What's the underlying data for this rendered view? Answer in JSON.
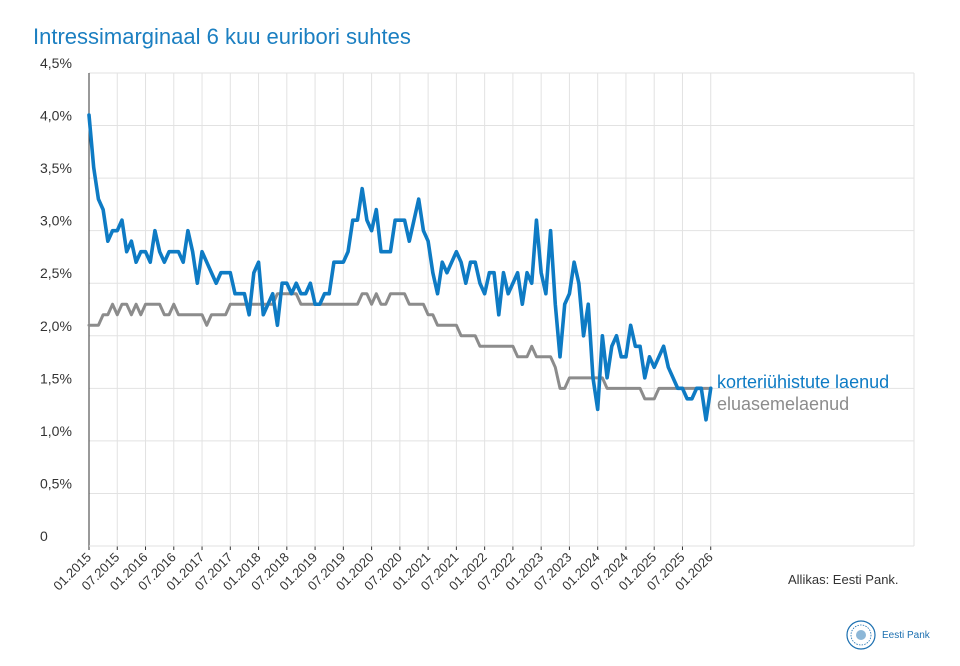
{
  "title": "Intressimarginaal 6 kuu euribori suhtes",
  "source": "Allikas: Eesti Pank.",
  "logo": {
    "name": "Eesti Pank"
  },
  "colors": {
    "series1": "#0e7bc4",
    "series2": "#8c8c8c",
    "title": "#1b7fc1",
    "grid": "#e2e2e2",
    "axis": "#333333"
  },
  "chart_data": {
    "type": "line",
    "title": "Intressimarginaal 6 kuu euribori suhtes",
    "xlabel": "",
    "ylabel": "",
    "ylim": [
      0,
      4.5
    ],
    "yticks": [
      0,
      0.5,
      1.0,
      1.5,
      2.0,
      2.5,
      3.0,
      3.5,
      4.0,
      4.5
    ],
    "ytick_labels": [
      "0",
      "0,5%",
      "1,0%",
      "1,5%",
      "2,0%",
      "2,5%",
      "3,0%",
      "3,5%",
      "4,0%",
      "4,5%"
    ],
    "x_start": "01.2015",
    "x_end": "01.2026",
    "xtick_labels": [
      "01.2015",
      "07.2015",
      "01.2016",
      "07.2016",
      "01.2017",
      "07.2017",
      "01.2018",
      "07.2018",
      "01.2019",
      "07.2019",
      "01.2020",
      "07.2020",
      "01.2021",
      "07.2021",
      "01.2022",
      "07.2022",
      "01.2023",
      "07.2023",
      "01.2024",
      "07.2024",
      "01.2025",
      "07.2025",
      "01.2026"
    ],
    "series": [
      {
        "name": "korteriühistute laenud",
        "values": [
          4.1,
          3.6,
          3.3,
          3.2,
          2.9,
          3.0,
          3.0,
          3.1,
          2.8,
          2.9,
          2.7,
          2.8,
          2.8,
          2.7,
          3.0,
          2.8,
          2.7,
          2.8,
          2.8,
          2.8,
          2.7,
          3.0,
          2.8,
          2.5,
          2.8,
          2.7,
          2.6,
          2.5,
          2.6,
          2.6,
          2.6,
          2.4,
          2.4,
          2.4,
          2.2,
          2.6,
          2.7,
          2.2,
          2.3,
          2.4,
          2.1,
          2.5,
          2.5,
          2.4,
          2.5,
          2.4,
          2.4,
          2.5,
          2.3,
          2.3,
          2.4,
          2.4,
          2.7,
          2.7,
          2.7,
          2.8,
          3.1,
          3.1,
          3.4,
          3.1,
          3.0,
          3.2,
          2.8,
          2.8,
          2.8,
          3.1,
          3.1,
          3.1,
          2.9,
          3.1,
          3.3,
          3.0,
          2.9,
          2.6,
          2.4,
          2.7,
          2.6,
          2.7,
          2.8,
          2.7,
          2.5,
          2.7,
          2.7,
          2.5,
          2.4,
          2.6,
          2.6,
          2.2,
          2.6,
          2.4,
          2.5,
          2.6,
          2.3,
          2.6,
          2.5,
          3.1,
          2.6,
          2.4,
          3.0,
          2.3,
          1.8,
          2.3,
          2.4,
          2.7,
          2.5,
          2.0,
          2.3,
          1.6,
          1.3,
          2.0,
          1.6,
          1.9,
          2.0,
          1.8,
          1.8,
          2.1,
          1.9,
          1.9,
          1.6,
          1.8,
          1.7,
          1.8,
          1.9,
          1.7,
          1.6,
          1.5,
          1.5,
          1.4,
          1.4,
          1.5,
          1.5,
          1.2,
          1.5
        ]
      },
      {
        "name": "eluasemelaenud",
        "values": [
          2.1,
          2.1,
          2.1,
          2.2,
          2.2,
          2.3,
          2.2,
          2.3,
          2.3,
          2.2,
          2.3,
          2.2,
          2.3,
          2.3,
          2.3,
          2.3,
          2.2,
          2.2,
          2.3,
          2.2,
          2.2,
          2.2,
          2.2,
          2.2,
          2.2,
          2.1,
          2.2,
          2.2,
          2.2,
          2.2,
          2.3,
          2.3,
          2.3,
          2.3,
          2.3,
          2.3,
          2.3,
          2.3,
          2.3,
          2.3,
          2.4,
          2.4,
          2.4,
          2.4,
          2.4,
          2.3,
          2.3,
          2.3,
          2.3,
          2.3,
          2.3,
          2.3,
          2.3,
          2.3,
          2.3,
          2.3,
          2.3,
          2.3,
          2.4,
          2.4,
          2.3,
          2.4,
          2.3,
          2.3,
          2.4,
          2.4,
          2.4,
          2.4,
          2.3,
          2.3,
          2.3,
          2.3,
          2.2,
          2.2,
          2.1,
          2.1,
          2.1,
          2.1,
          2.1,
          2.0,
          2.0,
          2.0,
          2.0,
          1.9,
          1.9,
          1.9,
          1.9,
          1.9,
          1.9,
          1.9,
          1.9,
          1.8,
          1.8,
          1.8,
          1.9,
          1.8,
          1.8,
          1.8,
          1.8,
          1.7,
          1.5,
          1.5,
          1.6,
          1.6,
          1.6,
          1.6,
          1.6,
          1.6,
          1.6,
          1.6,
          1.5,
          1.5,
          1.5,
          1.5,
          1.5,
          1.5,
          1.5,
          1.5,
          1.4,
          1.4,
          1.4,
          1.5,
          1.5,
          1.5,
          1.5,
          1.5,
          1.5,
          1.5,
          1.5,
          1.5,
          1.5,
          1.5,
          1.5
        ]
      }
    ]
  }
}
